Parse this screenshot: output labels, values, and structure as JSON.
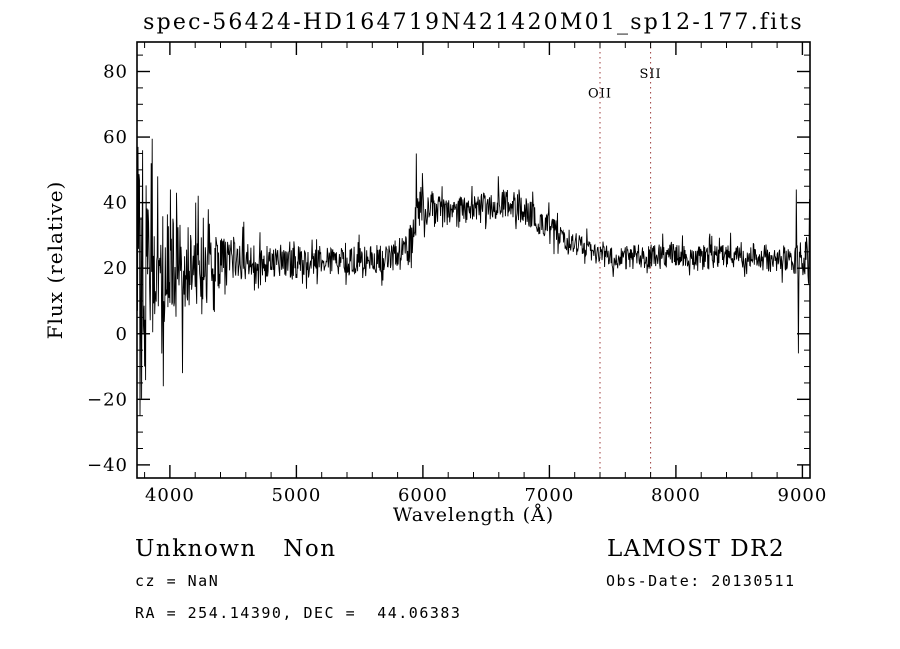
{
  "annotations": {
    "class_label": "Unknown   Non",
    "survey": "LAMOST DR2",
    "cz": "cz = NaN",
    "obs_date": "Obs-Date: 20130511",
    "ra_dec": "RA = 254.14390, DEC =  44.06383"
  },
  "chart_data": {
    "type": "line",
    "title": "spec-56424-HD164719N421420M01_sp12-177.fits",
    "xlabel": "Wavelength (Å)",
    "ylabel": "Flux (relative)",
    "xlim": [
      3740,
      9060
    ],
    "ylim": [
      -44,
      89
    ],
    "x_major_ticks": [
      4000,
      5000,
      6000,
      7000,
      8000,
      9000
    ],
    "x_minor_step": 200,
    "y_major_ticks": [
      -40,
      -20,
      0,
      20,
      40,
      60,
      80
    ],
    "y_minor_step": 5,
    "grid": false,
    "legend": "none",
    "line_color": "#000000",
    "marker_color": "#9b3a3a",
    "marker_lines": [
      {
        "label": "OII",
        "wavelength": 7400,
        "label_flux": 72
      },
      {
        "label": "SII",
        "wavelength": 7800,
        "label_flux": 78
      }
    ],
    "spectrum_model": {
      "dx": 4,
      "seed": 977,
      "continuum": [
        [
          3740,
          24
        ],
        [
          3780,
          21
        ],
        [
          3850,
          20
        ],
        [
          3950,
          20
        ],
        [
          4050,
          20
        ],
        [
          4150,
          20.5
        ],
        [
          4250,
          21
        ],
        [
          4350,
          21.5
        ],
        [
          4500,
          22
        ],
        [
          4650,
          23
        ],
        [
          4800,
          22.5
        ],
        [
          4950,
          22
        ],
        [
          5100,
          21.5
        ],
        [
          5250,
          22
        ],
        [
          5400,
          22
        ],
        [
          5550,
          22.5
        ],
        [
          5700,
          23.5
        ],
        [
          5830,
          24.5
        ],
        [
          5900,
          26
        ],
        [
          5940,
          34
        ],
        [
          5980,
          40
        ],
        [
          6050,
          38.5
        ],
        [
          6150,
          37
        ],
        [
          6250,
          37
        ],
        [
          6350,
          37.5
        ],
        [
          6450,
          38
        ],
        [
          6550,
          39.5
        ],
        [
          6650,
          40
        ],
        [
          6750,
          38.5
        ],
        [
          6850,
          36.5
        ],
        [
          6950,
          34
        ],
        [
          7050,
          31
        ],
        [
          7150,
          28.5
        ],
        [
          7250,
          26.5
        ],
        [
          7350,
          25
        ],
        [
          7450,
          24
        ],
        [
          7550,
          23
        ],
        [
          7650,
          23
        ],
        [
          7750,
          23.5
        ],
        [
          7850,
          23.5
        ],
        [
          7950,
          24
        ],
        [
          8050,
          23.5
        ],
        [
          8150,
          23
        ],
        [
          8300,
          23.5
        ],
        [
          8450,
          24
        ],
        [
          8600,
          24
        ],
        [
          8750,
          23
        ],
        [
          8900,
          22.5
        ],
        [
          9000,
          21
        ],
        [
          9060,
          20
        ]
      ],
      "noise": [
        [
          3740,
          28
        ],
        [
          3770,
          30
        ],
        [
          3820,
          24
        ],
        [
          3880,
          20
        ],
        [
          3950,
          18
        ],
        [
          4020,
          16
        ],
        [
          4100,
          14
        ],
        [
          4200,
          12
        ],
        [
          4300,
          10
        ],
        [
          4400,
          8
        ],
        [
          4520,
          6.5
        ],
        [
          4700,
          5.5
        ],
        [
          4900,
          5
        ],
        [
          5200,
          4.5
        ],
        [
          5600,
          4.5
        ],
        [
          5850,
          5
        ],
        [
          5950,
          7
        ],
        [
          6050,
          5.5
        ],
        [
          6250,
          4.5
        ],
        [
          6600,
          4.5
        ],
        [
          7000,
          4
        ],
        [
          7400,
          3.2
        ],
        [
          7700,
          4
        ],
        [
          8000,
          3.5
        ],
        [
          8400,
          4
        ],
        [
          8800,
          4.2
        ],
        [
          8950,
          5
        ],
        [
          9020,
          9
        ],
        [
          9060,
          12
        ]
      ],
      "spikes": [
        [
          3714,
          83
        ],
        [
          3726,
          -8
        ],
        [
          3746,
          57
        ],
        [
          3762,
          -25
        ],
        [
          3782,
          56
        ],
        [
          3798,
          -10
        ],
        [
          3850,
          52
        ],
        [
          3902,
          48
        ],
        [
          3948,
          -16
        ],
        [
          4002,
          44
        ],
        [
          4052,
          43
        ],
        [
          4098,
          -12
        ],
        [
          4202,
          40
        ],
        [
          4302,
          38
        ],
        [
          5946,
          55
        ],
        [
          5994,
          49
        ],
        [
          8952,
          44
        ],
        [
          8968,
          -6
        ]
      ]
    }
  }
}
